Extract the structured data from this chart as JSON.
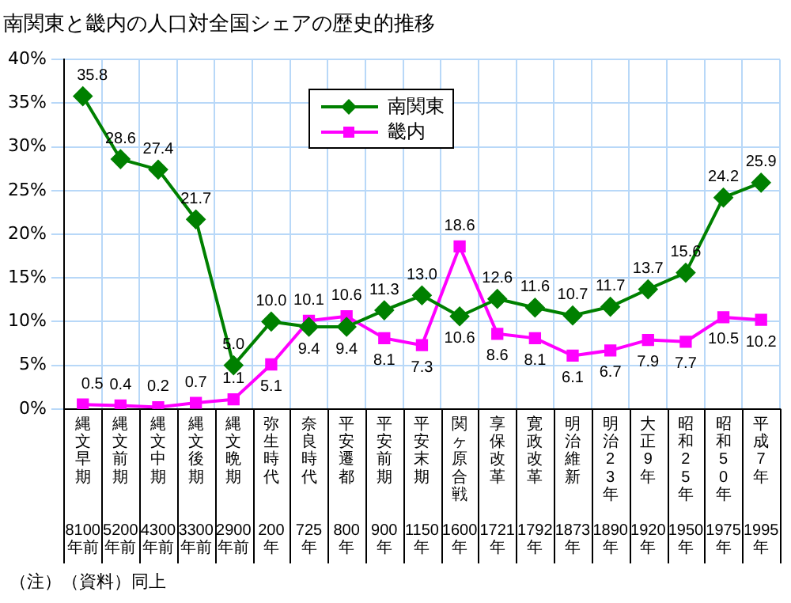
{
  "chart_data": {
    "type": "line",
    "title": "南関東と畿内の人口対全国シェアの歴史的推移",
    "categories": [
      "縄文早期 8100年前",
      "縄文前期 5200年前",
      "縄文中期 4300年前",
      "縄文後期 3300年前",
      "縄文晩期 2900年前",
      "弥生時代 200年",
      "奈良時代 725年",
      "平安遷都 800年",
      "平安前期 900年",
      "平安末期 1150年",
      "関ヶ原合戦 1600年",
      "享保改革 1721年",
      "寛政改革 1792年",
      "明治維新 1873年",
      "明治23年 1890年",
      "大正9年 1920年",
      "昭和25年 1950年",
      "昭和50年 1975年",
      "平成7年 1995年"
    ],
    "series": [
      {
        "name": "南関東",
        "color": "#008000",
        "marker": "diamond",
        "value_labels": [
          "35.8",
          "28.6",
          "27.4",
          "21.7",
          "5.0",
          "10.0",
          "9.4",
          "9.4",
          "11.3",
          "13.0",
          "10.6",
          "12.6",
          "11.6",
          "10.7",
          "11.7",
          "13.7",
          "15.6",
          "24.2",
          "25.9"
        ],
        "values": [
          35.8,
          28.6,
          27.4,
          21.7,
          5.0,
          10.0,
          9.4,
          9.4,
          11.3,
          13.0,
          10.6,
          12.6,
          11.6,
          10.7,
          11.7,
          13.7,
          15.6,
          24.2,
          25.9
        ]
      },
      {
        "name": "畿内",
        "color": "#ff00ff",
        "marker": "square",
        "value_labels": [
          "0.5",
          "0.4",
          "0.2",
          "0.7",
          "1.1",
          "5.1",
          "10.1",
          "10.6",
          "8.1",
          "7.3",
          "18.6",
          "8.6",
          "8.1",
          "6.1",
          "6.7",
          "7.9",
          "7.7",
          "10.5",
          "10.2"
        ],
        "values": [
          0.5,
          0.4,
          0.2,
          0.7,
          1.1,
          5.1,
          10.1,
          10.6,
          8.1,
          7.3,
          18.6,
          8.6,
          8.1,
          6.1,
          6.7,
          7.9,
          7.7,
          10.5,
          10.2
        ]
      }
    ],
    "ylim": [
      0,
      40
    ],
    "yticks": [
      {
        "value": 0,
        "label": "0%"
      },
      {
        "value": 5,
        "label": "5%"
      },
      {
        "value": 10,
        "label": "10%"
      },
      {
        "value": 15,
        "label": "15%"
      },
      {
        "value": 20,
        "label": "20%"
      },
      {
        "value": 25,
        "label": "25%"
      },
      {
        "value": 30,
        "label": "30%"
      },
      {
        "value": 35,
        "label": "35%"
      },
      {
        "value": 40,
        "label": "40%"
      }
    ],
    "grid": true,
    "legend": "top",
    "line_style": "solid",
    "annotations": [
      "（注）（資料）同上"
    ]
  }
}
